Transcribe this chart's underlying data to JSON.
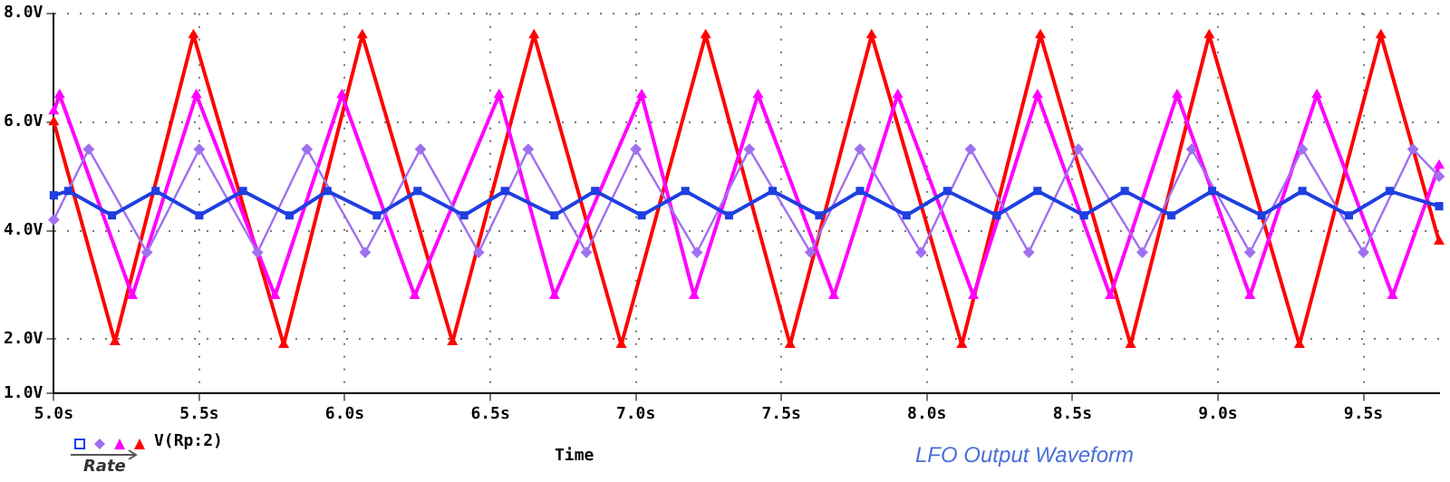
{
  "chart_data": {
    "type": "line",
    "title": "LFO Output Waveform",
    "xlabel": "Time",
    "legend_title": "V(Rp:2)",
    "annotations": [
      "Rate"
    ],
    "xlim": [
      5.0,
      9.76
    ],
    "xticks": [
      {
        "value": 5.0,
        "label": "5.0s"
      },
      {
        "value": 5.5,
        "label": "5.5s"
      },
      {
        "value": 6.0,
        "label": "6.0s"
      },
      {
        "value": 6.5,
        "label": "6.5s"
      },
      {
        "value": 7.0,
        "label": "7.0s"
      },
      {
        "value": 7.5,
        "label": "7.5s"
      },
      {
        "value": 8.0,
        "label": "8.0s"
      },
      {
        "value": 8.5,
        "label": "8.5s"
      },
      {
        "value": 9.0,
        "label": "9.0s"
      },
      {
        "value": 9.5,
        "label": "9.5s"
      }
    ],
    "ylim": [
      1,
      8
    ],
    "yticks": [
      {
        "value": 1,
        "label": "1.0V"
      },
      {
        "value": 2,
        "label": "2.0V"
      },
      {
        "value": 4,
        "label": "4.0V"
      },
      {
        "value": 6,
        "label": "6.0V"
      },
      {
        "value": 8,
        "label": "8.0V"
      }
    ],
    "grid": true,
    "line_style": "solid",
    "series": [
      {
        "color": "#1f3fe0",
        "marker": "square",
        "x": [
          5.0,
          5.05,
          5.2,
          5.35,
          5.5,
          5.65,
          5.81,
          5.94,
          6.11,
          6.25,
          6.41,
          6.55,
          6.72,
          6.86,
          7.02,
          7.17,
          7.32,
          7.47,
          7.63,
          7.77,
          7.93,
          8.07,
          8.24,
          8.38,
          8.54,
          8.68,
          8.84,
          8.98,
          9.15,
          9.29,
          9.45,
          9.59,
          9.76
        ],
        "values": [
          4.65,
          4.73,
          4.28,
          4.73,
          4.28,
          4.73,
          4.28,
          4.73,
          4.28,
          4.73,
          4.28,
          4.73,
          4.28,
          4.73,
          4.28,
          4.73,
          4.28,
          4.73,
          4.28,
          4.73,
          4.28,
          4.73,
          4.28,
          4.73,
          4.28,
          4.73,
          4.28,
          4.73,
          4.28,
          4.73,
          4.28,
          4.73,
          4.45
        ]
      },
      {
        "color": "#a070f0",
        "marker": "diamond",
        "x": [
          5.0,
          5.12,
          5.32,
          5.5,
          5.7,
          5.87,
          6.07,
          6.26,
          6.46,
          6.63,
          6.83,
          7.0,
          7.21,
          7.39,
          7.6,
          7.77,
          7.98,
          8.15,
          8.35,
          8.52,
          8.74,
          8.91,
          9.11,
          9.29,
          9.5,
          9.67,
          9.76
        ],
        "values": [
          4.2,
          5.5,
          3.6,
          5.5,
          3.6,
          5.5,
          3.6,
          5.5,
          3.6,
          5.5,
          3.6,
          5.5,
          3.6,
          5.5,
          3.6,
          5.5,
          3.6,
          5.5,
          3.6,
          5.5,
          3.6,
          5.5,
          3.6,
          5.5,
          3.6,
          5.5,
          5.0
        ]
      },
      {
        "color": "#ff00ff",
        "marker": "triangle",
        "x": [
          5.0,
          5.02,
          5.27,
          5.49,
          5.76,
          5.99,
          6.24,
          6.53,
          6.72,
          7.02,
          7.2,
          7.42,
          7.68,
          7.9,
          8.16,
          8.38,
          8.63,
          8.86,
          9.11,
          9.34,
          9.6,
          9.76
        ],
        "values": [
          6.2,
          6.5,
          2.8,
          6.5,
          2.8,
          6.5,
          2.8,
          6.5,
          2.8,
          6.5,
          2.8,
          6.5,
          2.8,
          6.5,
          2.8,
          6.5,
          2.8,
          6.5,
          2.8,
          6.5,
          2.8,
          5.2
        ]
      },
      {
        "color": "#ff0000",
        "marker": "triangle",
        "x": [
          5.0,
          5.21,
          5.48,
          5.79,
          6.06,
          6.37,
          6.65,
          6.95,
          7.24,
          7.53,
          7.81,
          8.12,
          8.39,
          8.7,
          8.97,
          9.28,
          9.56,
          9.76
        ],
        "values": [
          6.0,
          1.95,
          7.6,
          1.9,
          7.6,
          1.95,
          7.6,
          1.9,
          7.6,
          1.9,
          7.6,
          1.9,
          7.6,
          1.9,
          7.6,
          1.9,
          7.6,
          3.8
        ]
      }
    ]
  }
}
